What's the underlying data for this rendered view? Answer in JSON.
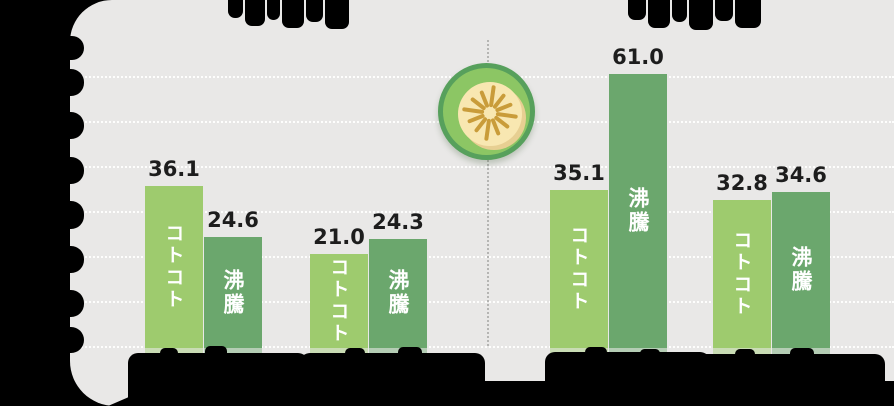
{
  "page": {
    "background": "#000000"
  },
  "panel": {
    "color": "#e9e8e7",
    "gridline_color": "rgba(255,255,255,0.92)"
  },
  "chart_data": {
    "type": "bar",
    "series": [
      {
        "name": "コトコト",
        "color": "#9ecb6e",
        "values": [
          36.1,
          21.0,
          35.1,
          32.8
        ]
      },
      {
        "name": "沸騰",
        "color": "#6ba76d",
        "values": [
          24.6,
          24.3,
          61.0,
          34.6
        ]
      }
    ],
    "group_count": 4,
    "groups_per_half": 2,
    "ylim": [
      0,
      65
    ],
    "gridlines": [
      0,
      10,
      20,
      30,
      40,
      50,
      60
    ],
    "grid": true,
    "legend_position": "none",
    "value_labels": [
      "36.1",
      "24.6",
      "21.0",
      "24.3",
      "35.1",
      "61.0",
      "32.8",
      "34.6"
    ],
    "redacted": {
      "title_left": true,
      "title_right": true,
      "y_tick_labels": true,
      "category_labels": true,
      "footnote": true
    }
  },
  "icon": {
    "name": "citrus-slice-badge",
    "ring_color": "#57a05c",
    "fill_color": "#8cc664",
    "flesh_color": "#f8e7b1",
    "flesh_shade_color": "#e7cf92",
    "ray_color": "#c99c3a"
  }
}
